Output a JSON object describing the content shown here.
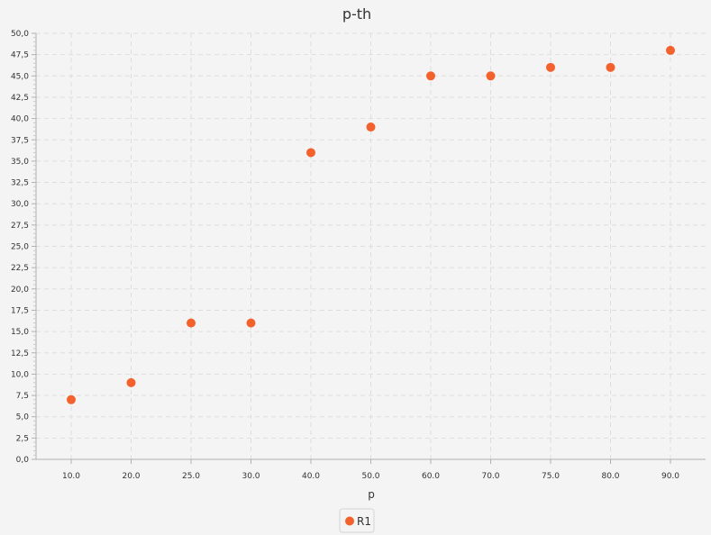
{
  "chart_data": {
    "type": "scatter",
    "title": "p-th",
    "xlabel": "p",
    "ylabel": "",
    "categories": [
      "10.0",
      "20.0",
      "25.0",
      "30.0",
      "40.0",
      "50.0",
      "60.0",
      "70.0",
      "75.0",
      "80.0",
      "90.0"
    ],
    "ylim": [
      0,
      50
    ],
    "ytick_step": 2.5,
    "ytick_labels": [
      "0,0",
      "2,5",
      "5,0",
      "7,5",
      "10,0",
      "12,5",
      "15,0",
      "17,5",
      "20,0",
      "22,5",
      "25,0",
      "27,5",
      "30,0",
      "32,5",
      "35,0",
      "37,5",
      "40,0",
      "42,5",
      "45,0",
      "47,5",
      "50,0"
    ],
    "grid": true,
    "legend_position": "bottom-center",
    "series": [
      {
        "name": "R1",
        "color": "#f3622d",
        "values": [
          7,
          9,
          16,
          16,
          36,
          39,
          45,
          45,
          46,
          46,
          48
        ]
      }
    ]
  }
}
